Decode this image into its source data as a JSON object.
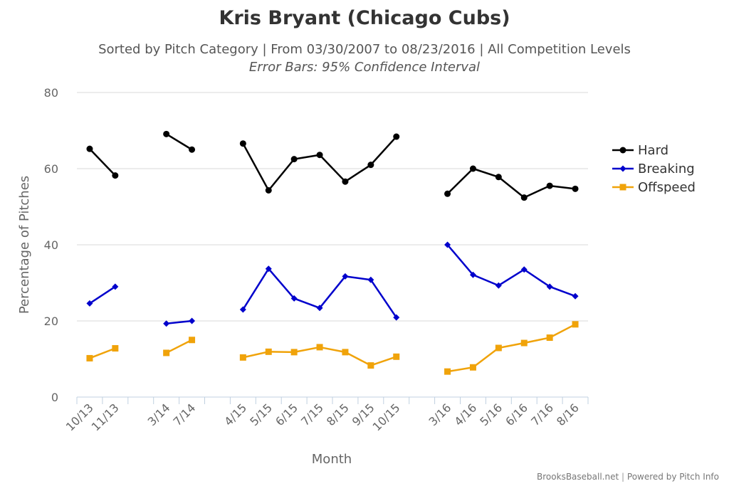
{
  "header": {
    "title": "Kris Bryant (Chicago Cubs)",
    "subtitle": "Sorted by Pitch Category | From 03/30/2007 to 08/23/2016 | All Competition Levels",
    "subtitle2": "Error Bars: 95% Confidence Interval"
  },
  "footer": {
    "source": "BrooksBaseball.net",
    "separator": "|",
    "powered": "Powered by Pitch Info"
  },
  "chart_data": {
    "type": "line",
    "xlabel": "Month",
    "ylabel": "Percentage of Pitches",
    "ylim": [
      0,
      80
    ],
    "yticks": [
      0,
      20,
      40,
      60,
      80
    ],
    "grid": true,
    "legend_position": "right",
    "categories": [
      "10/13",
      "11/13",
      "",
      "3/14",
      "7/14",
      "",
      "4/15",
      "5/15",
      "6/15",
      "7/15",
      "8/15",
      "9/15",
      "10/15",
      "",
      "3/16",
      "4/16",
      "5/16",
      "6/16",
      "7/16",
      "8/16"
    ],
    "series": [
      {
        "name": "Hard",
        "color": "#000000",
        "marker": "circle",
        "values": [
          65.2,
          58.2,
          null,
          69.1,
          65.0,
          null,
          66.6,
          54.3,
          62.5,
          63.6,
          56.6,
          61.0,
          68.4,
          null,
          53.4,
          60.0,
          57.8,
          52.4,
          55.5,
          54.7
        ]
      },
      {
        "name": "Breaking",
        "color": "#0000cc",
        "marker": "diamond",
        "values": [
          24.6,
          29.0,
          null,
          19.3,
          20.0,
          null,
          23.0,
          33.7,
          25.9,
          23.4,
          31.7,
          30.8,
          20.9,
          null,
          40.0,
          32.1,
          29.3,
          33.5,
          29.0,
          26.5
        ]
      },
      {
        "name": "Offspeed",
        "color": "#f0a30a",
        "marker": "square",
        "values": [
          10.2,
          12.8,
          null,
          11.6,
          15.0,
          null,
          10.4,
          11.9,
          11.8,
          13.1,
          11.8,
          8.3,
          10.6,
          null,
          6.7,
          7.8,
          12.9,
          14.2,
          15.6,
          19.1
        ]
      }
    ]
  }
}
